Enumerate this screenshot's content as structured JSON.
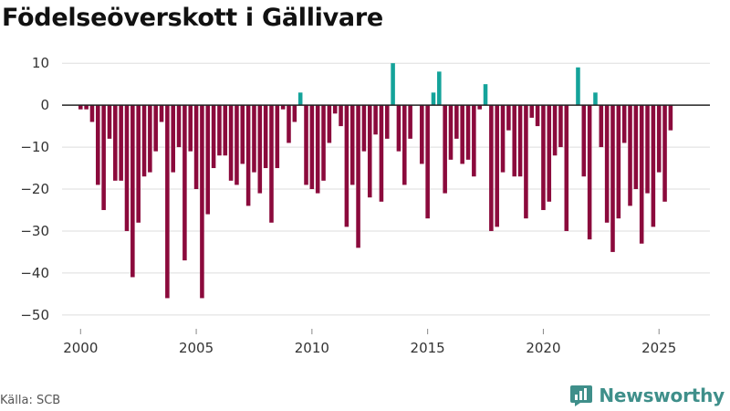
{
  "header": {
    "title": "Födelseöverskott i Gällivare"
  },
  "footer": {
    "source": "Källa: SCB",
    "brand": "Newsworthy"
  },
  "colors": {
    "negative": "#8b0a3c",
    "positive": "#14a39a",
    "grid": "#dddddd",
    "zero_line": "#222222",
    "brand": "#3f8f8a"
  },
  "chart_data": {
    "type": "bar",
    "title": "Födelseöverskott i Gällivare",
    "xlabel": "",
    "ylabel": "",
    "ylim": [
      -52,
      12
    ],
    "xlim": [
      1999.2,
      2027.2
    ],
    "yticks": [
      10,
      0,
      -10,
      -20,
      -30,
      -40,
      -50
    ],
    "ytick_labels": [
      "10",
      "0",
      "−10",
      "−20",
      "−30",
      "−40",
      "−50"
    ],
    "xticks": [
      2000,
      2005,
      2010,
      2015,
      2020,
      2025
    ],
    "xtick_labels": [
      "2000",
      "2005",
      "2010",
      "2015",
      "2020",
      "2025"
    ],
    "frequency": "quarterly",
    "start": 2000.0,
    "values": [
      -1,
      -1,
      -4,
      -19,
      -25,
      -8,
      -18,
      -18,
      -30,
      -41,
      -28,
      -17,
      -16,
      -11,
      -4,
      -46,
      -16,
      -10,
      -37,
      -11,
      -20,
      -46,
      -26,
      -15,
      -12,
      -12,
      -18,
      -19,
      -14,
      -24,
      -16,
      -21,
      -15,
      -28,
      -15,
      -1,
      -9,
      -4,
      3,
      -19,
      -20,
      -21,
      -18,
      -9,
      -2,
      -5,
      -29,
      -19,
      -34,
      -11,
      -22,
      -7,
      -23,
      -8,
      10,
      -11,
      -19,
      -8,
      0,
      -14,
      -27,
      3,
      8,
      -21,
      -13,
      -8,
      -14,
      -13,
      -17,
      -1,
      5,
      -30,
      -29,
      -16,
      -6,
      -17,
      -17,
      -27,
      -3,
      -5,
      -25,
      -23,
      -12,
      -10,
      -30,
      0,
      9,
      -17,
      -32,
      3,
      -10,
      -28,
      -35,
      -27,
      -9,
      -24,
      -20,
      -33,
      -21,
      -29,
      -16,
      -23,
      -6
    ]
  }
}
